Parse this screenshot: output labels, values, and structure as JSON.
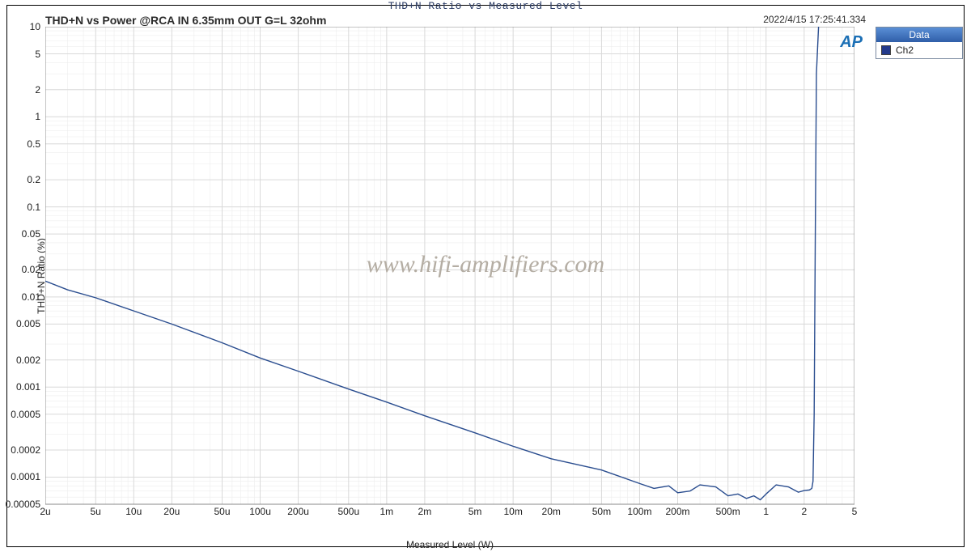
{
  "header": {
    "page_title": "THD+N Ratio vs Measured Level",
    "chart_title": "THD+N vs Power @RCA IN 6.35mm OUT G=L 32ohm",
    "timestamp": "2022/4/15 17:25:41.334"
  },
  "axes": {
    "xlabel": "Measured Level (W)",
    "ylabel": "THD+N Ratio (%)",
    "xscale": "log",
    "yscale": "log",
    "xlim_min": 2e-06,
    "xlim_max": 5.0,
    "ylim_min": 5e-05,
    "ylim_max": 10.0,
    "xticks": [
      2e-06,
      5e-06,
      1e-05,
      2e-05,
      5e-05,
      0.0001,
      0.0002,
      0.0005,
      0.001,
      0.002,
      0.005,
      0.01,
      0.02,
      0.05,
      0.1,
      0.2,
      0.5,
      1,
      2,
      5
    ],
    "xtick_labels": [
      "2u",
      "5u",
      "10u",
      "20u",
      "50u",
      "100u",
      "200u",
      "500u",
      "1m",
      "2m",
      "5m",
      "10m",
      "20m",
      "50m",
      "100m",
      "200m",
      "500m",
      "1",
      "2",
      "5"
    ],
    "yticks": [
      5e-05,
      0.0001,
      0.0002,
      0.0005,
      0.001,
      0.002,
      0.005,
      0.01,
      0.02,
      0.05,
      0.1,
      0.2,
      0.5,
      1,
      2,
      5,
      10
    ],
    "ytick_labels": [
      "0.00005",
      "0.0001",
      "0.0002",
      "0.0005",
      "0.001",
      "0.002",
      "0.005",
      "0.01",
      "0.02",
      "0.05",
      "0.1",
      "0.2",
      "0.5",
      "1",
      "2",
      "5",
      "10"
    ]
  },
  "style": {
    "background_color": "#ffffff",
    "grid_major_color": "#d9d9d9",
    "grid_minor_color": "#ededed",
    "plot_border_color": "#888888",
    "line_color": "#2a4d8f",
    "line_width": 1.4,
    "tick_fontsize": 12,
    "label_fontsize": 12,
    "title_fontsize": 14,
    "frame_border_color": "#000000",
    "ap_logo_color": "#1b6fb5",
    "legend_border_color": "#7a8aa0",
    "legend_header_bg_top": "#5a8fd6",
    "legend_header_bg_bottom": "#2f5ea8",
    "swatch_color": "#233a8c"
  },
  "legend": {
    "header": "Data",
    "items": [
      {
        "label": "Ch2",
        "color": "#233a8c"
      }
    ]
  },
  "watermark": "www.hifi-amplifiers.com",
  "ap_logo_text": "AP",
  "series": {
    "name": "Ch2",
    "type": "line",
    "color": "#2a4d8f",
    "x": [
      2e-06,
      3e-06,
      5e-06,
      1e-05,
      2e-05,
      5e-05,
      0.0001,
      0.0002,
      0.0005,
      0.001,
      0.002,
      0.005,
      0.01,
      0.02,
      0.05,
      0.1,
      0.13,
      0.17,
      0.2,
      0.25,
      0.3,
      0.4,
      0.5,
      0.6,
      0.7,
      0.8,
      0.9,
      1.0,
      1.2,
      1.5,
      1.8,
      2.0,
      2.2,
      2.3,
      2.35,
      2.4,
      2.45,
      2.5,
      2.6
    ],
    "y": [
      0.015,
      0.012,
      0.0098,
      0.007,
      0.005,
      0.0031,
      0.0021,
      0.0015,
      0.00095,
      0.00068,
      0.00048,
      0.00031,
      0.00022,
      0.00016,
      0.00012,
      8.5e-05,
      7.5e-05,
      8e-05,
      6.7e-05,
      7e-05,
      8.2e-05,
      7.8e-05,
      6.2e-05,
      6.5e-05,
      5.8e-05,
      6.2e-05,
      5.6e-05,
      6.5e-05,
      8.2e-05,
      7.8e-05,
      6.8e-05,
      7.1e-05,
      7.2e-05,
      7.5e-05,
      9e-05,
      0.0005,
      0.05,
      3.0,
      10.0
    ]
  }
}
